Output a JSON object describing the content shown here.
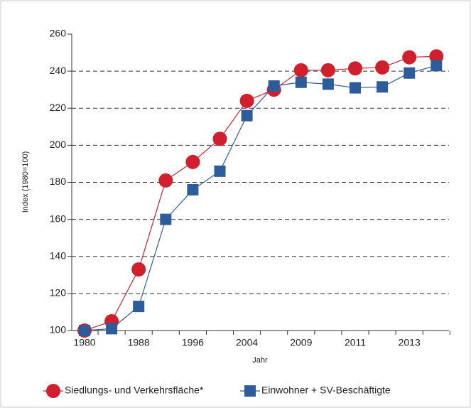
{
  "chart_data": {
    "type": "line",
    "x_label": "Jahr",
    "y_label": "Index (1980=100)",
    "categories": [
      "1980",
      null,
      "1988",
      null,
      "1996",
      null,
      "2004",
      null,
      "2009",
      null,
      "2011",
      null,
      "2013",
      null
    ],
    "series": [
      {
        "name": "Siedlungs- und Verkehrsfläche*",
        "color": "#d0202e",
        "marker": "circle",
        "values": [
          100,
          105,
          133,
          181,
          191,
          203.5,
          224,
          230,
          240.5,
          240.5,
          241.5,
          242,
          247.5,
          248
        ]
      },
      {
        "name": "Einwohner + SV-Beschäftigte",
        "color": "#2e5c9a",
        "marker": "square",
        "values": [
          100,
          101,
          113,
          160,
          176,
          186,
          216,
          232,
          234,
          233,
          231,
          231.5,
          239,
          243
        ]
      }
    ],
    "ylim": [
      100,
      260
    ],
    "yticks": [
      100,
      120,
      140,
      160,
      180,
      200,
      220,
      240,
      260
    ],
    "grid": true
  }
}
